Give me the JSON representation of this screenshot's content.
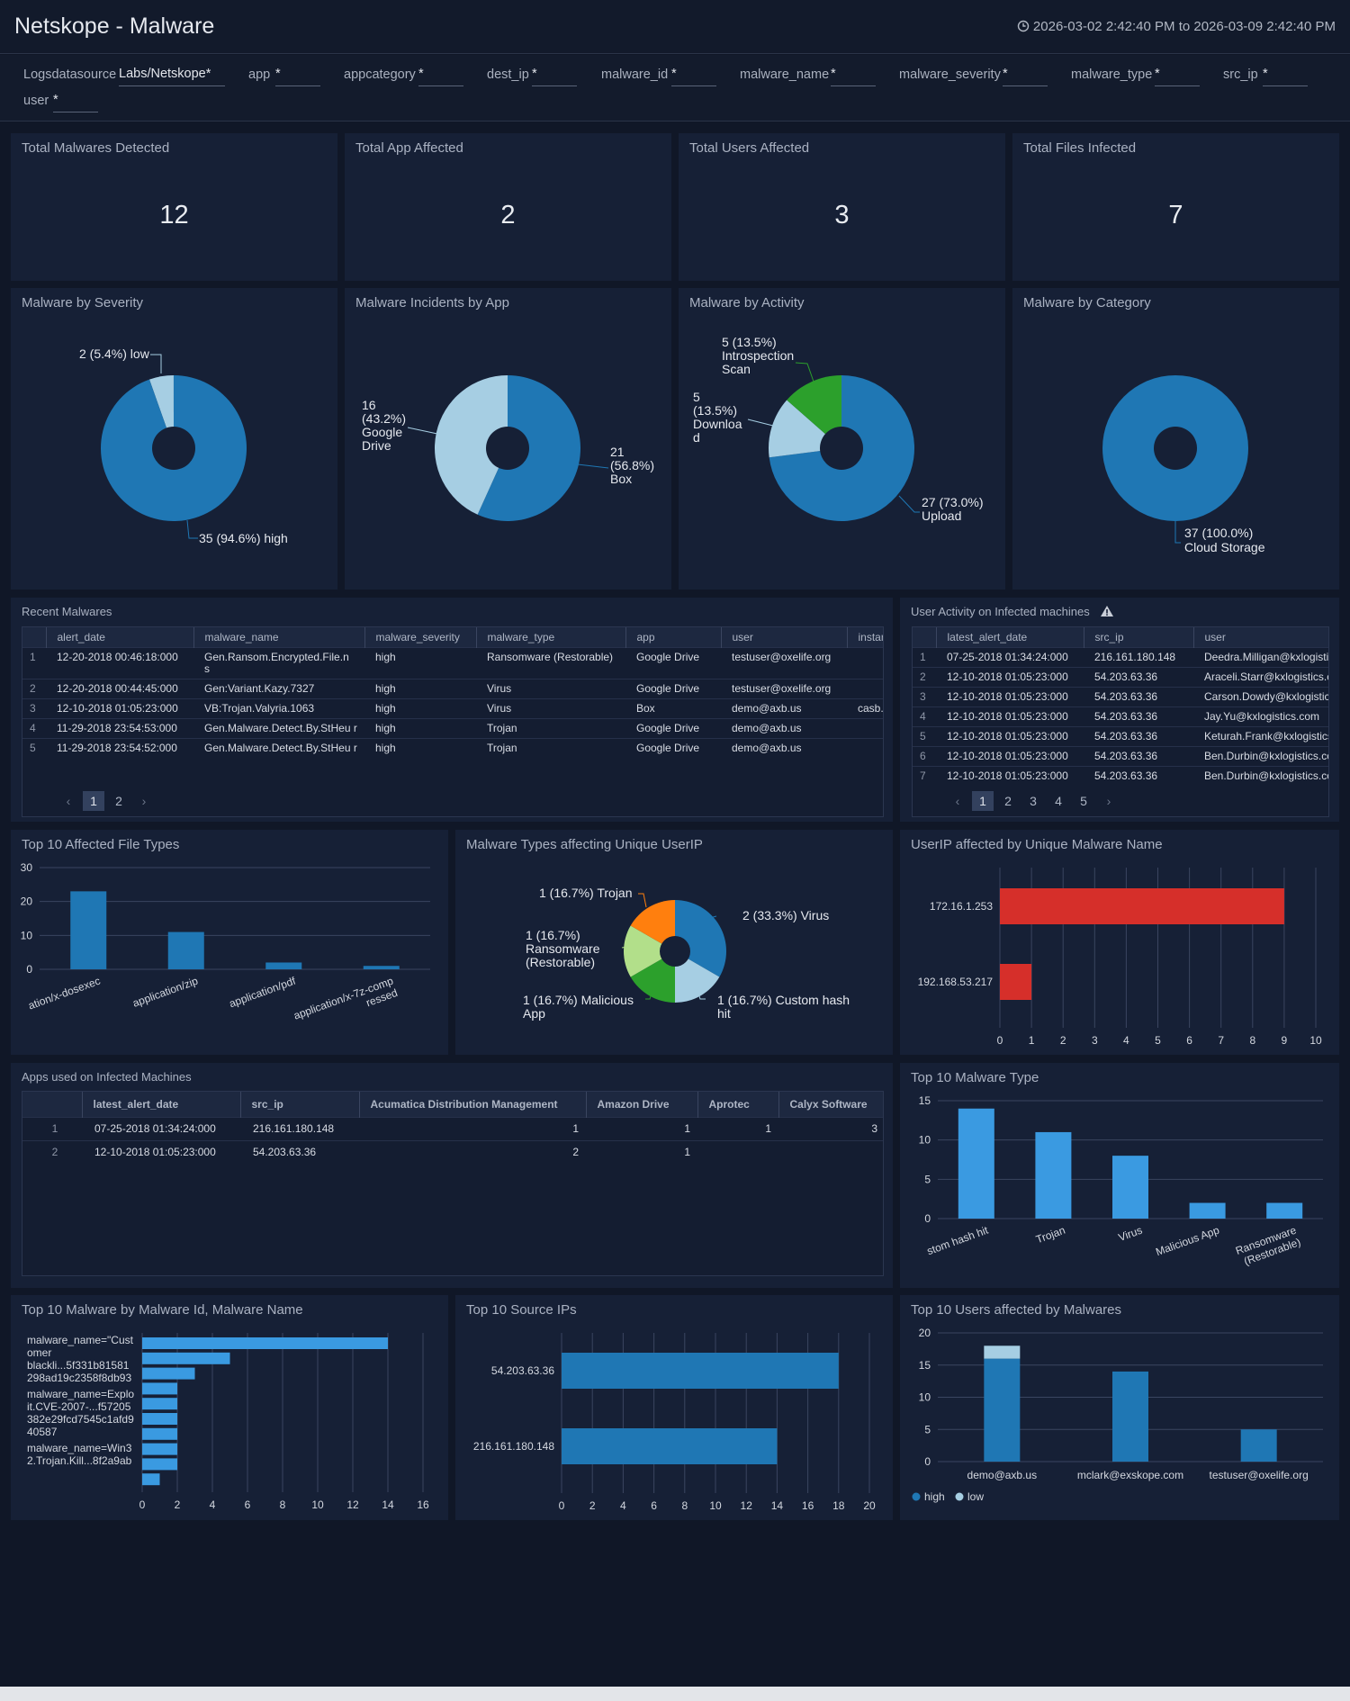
{
  "header": {
    "title": "Netskope - Malware",
    "time_range": "2026-03-02 2:42:40 PM to 2026-03-09 2:42:40 PM"
  },
  "filters": [
    {
      "label": "Logsdatasource",
      "value": "Labs/Netskope*"
    },
    {
      "label": "app",
      "value": "*"
    },
    {
      "label": "appcategory",
      "value": "*"
    },
    {
      "label": "dest_ip",
      "value": "*"
    },
    {
      "label": "malware_id",
      "value": "*"
    },
    {
      "label": "malware_name",
      "value": "*"
    },
    {
      "label": "malware_severity",
      "value": "*"
    },
    {
      "label": "malware_type",
      "value": "*"
    },
    {
      "label": "src_ip",
      "value": "*"
    },
    {
      "label": "user",
      "value": "*"
    }
  ],
  "kpis": [
    {
      "title": "Total Malwares Detected",
      "value": "12"
    },
    {
      "title": "Total App Affected",
      "value": "2"
    },
    {
      "title": "Total Users Affected",
      "value": "3"
    },
    {
      "title": "Total Files Infected",
      "value": "7"
    }
  ],
  "colors": {
    "blue": "#1f77b4",
    "light_blue": "#a6cee3",
    "green": "#2ca02c",
    "orange": "#ff7f0e",
    "light_green": "#b2df8a",
    "red": "#d62f2a",
    "bar_blue": "#3a9ae1"
  },
  "pies": {
    "severity": {
      "title": "Malware by Severity",
      "labels": {
        "low": "2 (5.4%) low",
        "high": "35 (94.6%) high"
      }
    },
    "app": {
      "title": "Malware Incidents by App",
      "labels": {
        "gd1": "16",
        "gd2": "(43.2%)",
        "gd3": "Google",
        "gd4": "Drive",
        "box1": "21",
        "box2": "(56.8%)",
        "box3": "Box"
      }
    },
    "activity": {
      "title": "Malware by Activity",
      "labels": {
        "is1": "5 (13.5%)",
        "is2": "Introspection",
        "is3": "Scan",
        "dl1": "5",
        "dl2": "(13.5%)",
        "dl3": "Downloa",
        "dl4": "d",
        "up1": "27 (73.0%)",
        "up2": "Upload"
      }
    },
    "category": {
      "title": "Malware by Category",
      "labels": {
        "c1": "37 (100.0%)",
        "c2": "Cloud Storage"
      }
    },
    "types": {
      "title": "Malware Types affecting Unique UserIP",
      "labels": {
        "trojan": "1 (16.7%) Trojan",
        "virus": "2 (33.3%) Virus",
        "rs1": "1 (16.7%)",
        "rs2": "Ransomware",
        "rs3": "(Restorable)",
        "ma1": "1 (16.7%) Malicious",
        "ma2": "App",
        "ch1": "1 (16.7%) Custom hash",
        "ch2": "hit"
      }
    }
  },
  "recent_malwares": {
    "title": "Recent Malwares",
    "columns": [
      "alert_date",
      "malware_name",
      "malware_severity",
      "malware_type",
      "app",
      "user",
      "instar"
    ],
    "rows": [
      {
        "n": "1",
        "alert_date": "12-20-2018 00:46:18:000",
        "malware_name": "Gen.Ransom.Encrypted.File.n s",
        "malware_severity": "high",
        "malware_type": "Ransomware (Restorable)",
        "app": "Google Drive",
        "user": "testuser@oxelife.org",
        "instance": ""
      },
      {
        "n": "2",
        "alert_date": "12-20-2018 00:44:45:000",
        "malware_name": "Gen:Variant.Kazy.7327",
        "malware_severity": "high",
        "malware_type": "Virus",
        "app": "Google Drive",
        "user": "testuser@oxelife.org",
        "instance": ""
      },
      {
        "n": "3",
        "alert_date": "12-10-2018 01:05:23:000",
        "malware_name": "VB:Trojan.Valyria.1063",
        "malware_severity": "high",
        "malware_type": "Virus",
        "app": "Box",
        "user": "demo@axb.us",
        "instance": "casb."
      },
      {
        "n": "4",
        "alert_date": "11-29-2018 23:54:53:000",
        "malware_name": "Gen.Malware.Detect.By.StHeu r",
        "malware_severity": "high",
        "malware_type": "Trojan",
        "app": "Google Drive",
        "user": "demo@axb.us",
        "instance": ""
      },
      {
        "n": "5",
        "alert_date": "11-29-2018 23:54:52:000",
        "malware_name": "Gen.Malware.Detect.By.StHeu r",
        "malware_severity": "high",
        "malware_type": "Trojan",
        "app": "Google Drive",
        "user": "demo@axb.us",
        "instance": ""
      }
    ],
    "pages": [
      "1",
      "2"
    ]
  },
  "user_activity": {
    "title": "User Activity on Infected machines",
    "columns": [
      "latest_alert_date",
      "src_ip",
      "user"
    ],
    "rows": [
      {
        "n": "1",
        "date": "07-25-2018 01:34:24:000",
        "ip": "216.161.180.148",
        "user": "Deedra.Milligan@kxlogistic"
      },
      {
        "n": "2",
        "date": "12-10-2018 01:05:23:000",
        "ip": "54.203.63.36",
        "user": "Araceli.Starr@kxlogistics.c"
      },
      {
        "n": "3",
        "date": "12-10-2018 01:05:23:000",
        "ip": "54.203.63.36",
        "user": "Carson.Dowdy@kxlogistic"
      },
      {
        "n": "4",
        "date": "12-10-2018 01:05:23:000",
        "ip": "54.203.63.36",
        "user": "Jay.Yu@kxlogistics.com"
      },
      {
        "n": "5",
        "date": "12-10-2018 01:05:23:000",
        "ip": "54.203.63.36",
        "user": "Keturah.Frank@kxlogistics"
      },
      {
        "n": "6",
        "date": "12-10-2018 01:05:23:000",
        "ip": "54.203.63.36",
        "user": "Ben.Durbin@kxlogistics.co"
      },
      {
        "n": "7",
        "date": "12-10-2018 01:05:23:000",
        "ip": "54.203.63.36",
        "user": "Ben.Durbin@kxlogistics.co"
      }
    ],
    "pages": [
      "1",
      "2",
      "3",
      "4",
      "5"
    ]
  },
  "apps_used": {
    "title": "Apps used on Infected Machines",
    "columns": [
      "latest_alert_date",
      "src_ip",
      "Acumatica Distribution Management",
      "Amazon Drive",
      "Aprotec",
      "Calyx Software"
    ],
    "rows": [
      {
        "n": "1",
        "date": "07-25-2018 01:34:24:000",
        "ip": "216.161.180.148",
        "c1": "1",
        "c2": "1",
        "c3": "1",
        "c4": "3"
      },
      {
        "n": "2",
        "date": "12-10-2018 01:05:23:000",
        "ip": "54.203.63.36",
        "c1": "2",
        "c2": "1",
        "c3": "",
        "c4": ""
      }
    ]
  },
  "chart_data": [
    {
      "id": "severity",
      "type": "pie",
      "title": "Malware by Severity",
      "slices": [
        {
          "label": "low",
          "value": 2,
          "pct": 5.4
        },
        {
          "label": "high",
          "value": 35,
          "pct": 94.6
        }
      ]
    },
    {
      "id": "app",
      "type": "pie",
      "title": "Malware Incidents by App",
      "slices": [
        {
          "label": "Box",
          "value": 21,
          "pct": 56.8
        },
        {
          "label": "Google Drive",
          "value": 16,
          "pct": 43.2
        }
      ]
    },
    {
      "id": "activity",
      "type": "pie",
      "title": "Malware by Activity",
      "slices": [
        {
          "label": "Upload",
          "value": 27,
          "pct": 73.0
        },
        {
          "label": "Download",
          "value": 5,
          "pct": 13.5
        },
        {
          "label": "Introspection Scan",
          "value": 5,
          "pct": 13.5
        }
      ]
    },
    {
      "id": "category",
      "type": "pie",
      "title": "Malware by Category",
      "slices": [
        {
          "label": "Cloud Storage",
          "value": 37,
          "pct": 100.0
        }
      ]
    },
    {
      "id": "filetypes",
      "type": "bar",
      "title": "Top 10 Affected File Types",
      "categories": [
        "ation/x-dosexec",
        "application/zip",
        "application/pdf",
        "application/x-7z-comp ressed"
      ],
      "values": [
        23,
        11,
        2,
        1
      ],
      "ylim": [
        0,
        30
      ],
      "yticks": [
        0,
        10,
        20,
        30
      ]
    },
    {
      "id": "types",
      "type": "pie",
      "title": "Malware Types affecting Unique UserIP",
      "slices": [
        {
          "label": "Virus",
          "value": 2,
          "pct": 33.3
        },
        {
          "label": "Custom hash hit",
          "value": 1,
          "pct": 16.7
        },
        {
          "label": "Malicious App",
          "value": 1,
          "pct": 16.7
        },
        {
          "label": "Ransomware (Restorable)",
          "value": 1,
          "pct": 16.7
        },
        {
          "label": "Trojan",
          "value": 1,
          "pct": 16.7
        }
      ]
    },
    {
      "id": "userip",
      "type": "bar",
      "orientation": "horizontal",
      "title": "UserIP affected by Unique Malware Name",
      "categories": [
        "172.16.1.253",
        "192.168.53.217"
      ],
      "values": [
        9,
        1
      ],
      "xlim": [
        0,
        10
      ],
      "xticks": [
        0,
        1,
        2,
        3,
        4,
        5,
        6,
        7,
        8,
        9,
        10
      ]
    },
    {
      "id": "mtype",
      "type": "bar",
      "title": "Top 10 Malware Type",
      "categories": [
        "stom hash hit",
        "Trojan",
        "Virus",
        "Malicious App",
        "Ransomware (Restorable)"
      ],
      "values": [
        14,
        11,
        8,
        2,
        2
      ],
      "ylim": [
        0,
        15
      ],
      "yticks": [
        0,
        5,
        10,
        15
      ]
    },
    {
      "id": "mid",
      "type": "bar",
      "orientation": "horizontal",
      "title": "Top 10 Malware by Malware Id, Malware Name",
      "category_labels": [
        "malware_name=\"Cust omer blackli...5f331b81581 298ad19c2358f8db93",
        "malware_name=Explo it.CVE-2007-...f57205 382e29fcd7545c1afd9 40587",
        "malware_name=Win3 2.Trojan.Kill...8f2a9ab"
      ],
      "values": [
        14,
        5,
        3,
        2,
        2,
        2,
        2,
        2,
        2,
        1
      ],
      "xlim": [
        0,
        16
      ],
      "xticks": [
        0,
        2,
        4,
        6,
        8,
        10,
        12,
        14,
        16
      ]
    },
    {
      "id": "srcip",
      "type": "bar",
      "orientation": "horizontal",
      "title": "Top 10 Source IPs",
      "categories": [
        "54.203.63.36",
        "216.161.180.148"
      ],
      "values": [
        18,
        14
      ],
      "xlim": [
        0,
        20
      ],
      "xticks": [
        0,
        2,
        4,
        6,
        8,
        10,
        12,
        14,
        16,
        18,
        20
      ]
    },
    {
      "id": "users",
      "type": "bar",
      "stacked": true,
      "title": "Top 10 Users affected by Malwares",
      "categories": [
        "demo@axb.us",
        "mclark@exskope.com",
        "testuser@oxelife.org"
      ],
      "series": [
        {
          "name": "high",
          "values": [
            16,
            14,
            5
          ]
        },
        {
          "name": "low",
          "values": [
            2,
            0,
            0
          ]
        }
      ],
      "ylim": [
        0,
        20
      ],
      "yticks": [
        0,
        5,
        10,
        15,
        20
      ],
      "legend": "bottom-left"
    }
  ]
}
